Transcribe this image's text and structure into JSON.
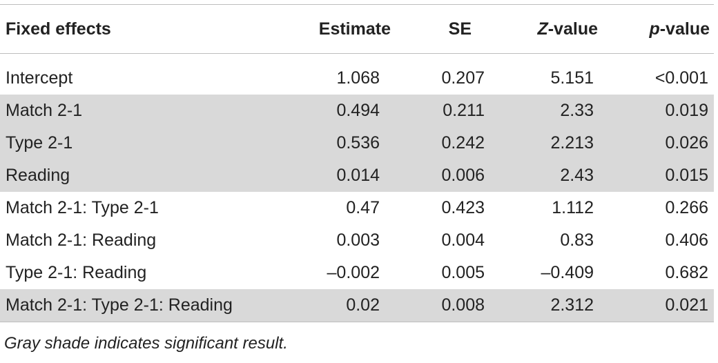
{
  "chart_data": {
    "type": "table",
    "columns": {
      "name": "Fixed effects",
      "estimate": "Estimate",
      "se": "SE",
      "z_prefix": "Z",
      "z_suffix": "-value",
      "p_prefix": "p",
      "p_suffix": "-value"
    },
    "rows": [
      {
        "name": "Intercept",
        "estimate": "1.068",
        "se": "0.207",
        "z": "5.151",
        "p": "<0.001",
        "shaded": false
      },
      {
        "name": "Match 2-1",
        "estimate": "0.494",
        "se": "0.211",
        "z": "2.33",
        "p": "0.019",
        "shaded": true
      },
      {
        "name": "Type 2-1",
        "estimate": "0.536",
        "se": "0.242",
        "z": "2.213",
        "p": "0.026",
        "shaded": true
      },
      {
        "name": "Reading",
        "estimate": "0.014",
        "se": "0.006",
        "z": "2.43",
        "p": "0.015",
        "shaded": true
      },
      {
        "name": "Match 2-1: Type 2-1",
        "estimate": "0.47",
        "se": "0.423",
        "z": "1.112",
        "p": "0.266",
        "shaded": false
      },
      {
        "name": "Match 2-1: Reading",
        "estimate": "0.003",
        "se": "0.004",
        "z": "0.83",
        "p": "0.406",
        "shaded": false
      },
      {
        "name": "Type 2-1: Reading",
        "estimate": "–0.002",
        "se": "0.005",
        "z": "–0.409",
        "p": "0.682",
        "shaded": false
      },
      {
        "name": "Match 2-1: Type 2-1: Reading",
        "estimate": "0.02",
        "se": "0.008",
        "z": "2.312",
        "p": "0.021",
        "shaded": true
      }
    ],
    "footnote": "Gray shade indicates significant result.",
    "shade_color": "#d9d9d9"
  }
}
